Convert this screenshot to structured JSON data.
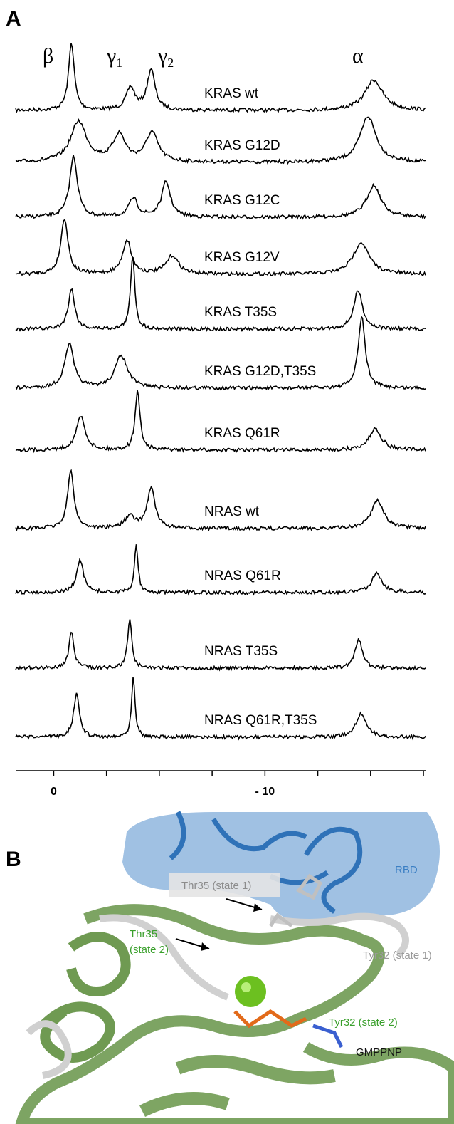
{
  "panel_a": {
    "label": "A",
    "peak_labels": [
      {
        "symbol": "β"
      },
      {
        "symbol": "γ",
        "subscript": "1"
      },
      {
        "symbol": "γ",
        "subscript": "2"
      },
      {
        "symbol": "α"
      }
    ],
    "xlim": [
      1.8,
      -17.6
    ],
    "xticks": [
      0,
      {
        "value": -10,
        "label": "- 10"
      }
    ],
    "minor_xticks": [
      -2.5,
      -5,
      -7.5,
      -12.5,
      -15,
      -17.5
    ],
    "traces": [
      {
        "name": "KRAS wt",
        "peaks": [
          {
            "ppm": -0.84,
            "height": 1.0,
            "width": 0.16
          },
          {
            "ppm": -3.64,
            "height": 0.33,
            "width": 0.25
          },
          {
            "ppm": -4.61,
            "height": 0.6,
            "width": 0.22
          },
          {
            "ppm": -15.15,
            "height": 0.45,
            "width": 0.5
          }
        ]
      },
      {
        "name": "KRAS G12D",
        "peaks": [
          {
            "ppm": -1.18,
            "height": 0.6,
            "width": 0.45
          },
          {
            "ppm": -3.1,
            "height": 0.4,
            "width": 0.35
          },
          {
            "ppm": -4.65,
            "height": 0.43,
            "width": 0.35
          },
          {
            "ppm": -14.88,
            "height": 0.68,
            "width": 0.45
          }
        ]
      },
      {
        "name": "KRAS G12C",
        "peaks": [
          {
            "ppm": -0.94,
            "height": 0.9,
            "width": 0.22
          },
          {
            "ppm": -3.77,
            "height": 0.27,
            "width": 0.25
          },
          {
            "ppm": -5.32,
            "height": 0.52,
            "width": 0.25
          },
          {
            "ppm": -15.15,
            "height": 0.47,
            "width": 0.4
          }
        ]
      },
      {
        "name": "KRAS G12V",
        "peaks": [
          {
            "ppm": -0.51,
            "height": 0.83,
            "width": 0.2
          },
          {
            "ppm": -3.47,
            "height": 0.5,
            "width": 0.25
          },
          {
            "ppm": -5.62,
            "height": 0.27,
            "width": 0.35
          },
          {
            "ppm": -14.55,
            "height": 0.47,
            "width": 0.45
          }
        ]
      },
      {
        "name": "KRAS T35S",
        "peaks": [
          {
            "ppm": -0.84,
            "height": 0.6,
            "width": 0.18
          },
          {
            "ppm": -3.74,
            "height": 1.1,
            "width": 0.12
          },
          {
            "ppm": -14.41,
            "height": 0.57,
            "width": 0.25
          }
        ]
      },
      {
        "name": "KRAS G12D,T35S",
        "peaks": [
          {
            "ppm": -0.74,
            "height": 0.65,
            "width": 0.25
          },
          {
            "ppm": -3.2,
            "height": 0.48,
            "width": 0.35
          },
          {
            "ppm": -14.58,
            "height": 1.05,
            "width": 0.2
          }
        ]
      },
      {
        "name": "KRAS Q61R",
        "peaks": [
          {
            "ppm": -1.28,
            "height": 0.5,
            "width": 0.25
          },
          {
            "ppm": -3.97,
            "height": 0.87,
            "width": 0.14
          },
          {
            "ppm": -15.22,
            "height": 0.32,
            "width": 0.35
          }
        ]
      },
      {
        "name": "NRAS wt",
        "peaks": [
          {
            "ppm": -0.81,
            "height": 0.85,
            "width": 0.18
          },
          {
            "ppm": -3.6,
            "height": 0.17,
            "width": 0.3
          },
          {
            "ppm": -4.61,
            "height": 0.6,
            "width": 0.22
          },
          {
            "ppm": -15.32,
            "height": 0.42,
            "width": 0.35
          }
        ]
      },
      {
        "name": "NRAS Q61R",
        "peaks": [
          {
            "ppm": -1.25,
            "height": 0.47,
            "width": 0.2
          },
          {
            "ppm": -3.91,
            "height": 0.72,
            "width": 0.1
          },
          {
            "ppm": -15.29,
            "height": 0.29,
            "width": 0.3
          }
        ]
      },
      {
        "name": "NRAS T35S",
        "peaks": [
          {
            "ppm": -0.84,
            "height": 0.54,
            "width": 0.14
          },
          {
            "ppm": -3.6,
            "height": 0.73,
            "width": 0.12
          },
          {
            "ppm": -14.44,
            "height": 0.43,
            "width": 0.2
          }
        ]
      },
      {
        "name": "NRAS Q61R,T35S",
        "peaks": [
          {
            "ppm": -1.08,
            "height": 0.65,
            "width": 0.16
          },
          {
            "ppm": -3.77,
            "height": 0.9,
            "width": 0.1
          },
          {
            "ppm": -14.55,
            "height": 0.35,
            "width": 0.3
          }
        ]
      }
    ]
  },
  "panel_b": {
    "label": "B",
    "annotations": {
      "rbd": "RBD",
      "thr35_state1": "Thr35 (state 1)",
      "thr35_state2": [
        "Thr35",
        "(state 2)"
      ],
      "tyr32_state1": "Tyr32 (state 1)",
      "tyr32_state2": "Tyr32 (state 2)",
      "gmppnp": "GMPPNP"
    }
  }
}
